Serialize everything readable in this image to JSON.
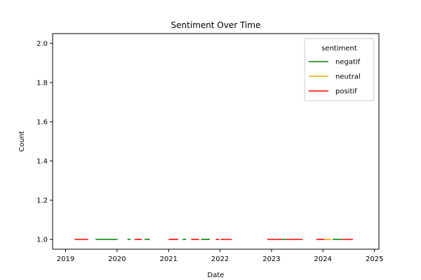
{
  "chart_data": {
    "type": "line",
    "title": "Sentiment Over Time",
    "xlabel": "Date",
    "ylabel": "Count",
    "xlim": [
      "2018-10-01",
      "2025-02-01"
    ],
    "ylim": [
      0.95,
      2.05
    ],
    "xticks": [
      "2019",
      "2020",
      "2021",
      "2022",
      "2023",
      "2024",
      "2025"
    ],
    "yticks": [
      "1.0",
      "1.2",
      "1.4",
      "1.6",
      "1.8",
      "2.0"
    ],
    "grid": false,
    "legend": {
      "title": "sentiment",
      "placement": "top-right"
    },
    "series": [
      {
        "name": "negatif",
        "color": "#008000",
        "segments": [
          [
            "2019-08-01",
            "2020-01-05"
          ],
          [
            "2020-03-15",
            "2020-04-05"
          ],
          [
            "2020-07-15",
            "2020-08-20"
          ],
          [
            "2021-04-10",
            "2021-05-05"
          ],
          [
            "2021-08-20",
            "2021-10-20"
          ],
          [
            "2023-03-20",
            "2023-04-20"
          ],
          [
            "2024-03-10",
            "2024-05-15"
          ]
        ]
      },
      {
        "name": "neutral",
        "color": "#FFA500",
        "segments": [
          [
            "2024-01-10",
            "2024-03-01"
          ]
        ]
      },
      {
        "name": "positif",
        "color": "#FF0000",
        "segments": [
          [
            "2019-03-05",
            "2019-06-10"
          ],
          [
            "2020-05-05",
            "2020-06-25"
          ],
          [
            "2021-01-01",
            "2021-03-10"
          ],
          [
            "2021-06-10",
            "2021-08-05"
          ],
          [
            "2021-12-01",
            "2021-12-25"
          ],
          [
            "2022-01-05",
            "2022-03-25"
          ],
          [
            "2022-12-01",
            "2023-03-20"
          ],
          [
            "2023-04-20",
            "2023-08-10"
          ],
          [
            "2023-11-15",
            "2024-01-10"
          ],
          [
            "2024-05-15",
            "2024-08-01"
          ]
        ]
      }
    ],
    "y_value": 1.0
  }
}
